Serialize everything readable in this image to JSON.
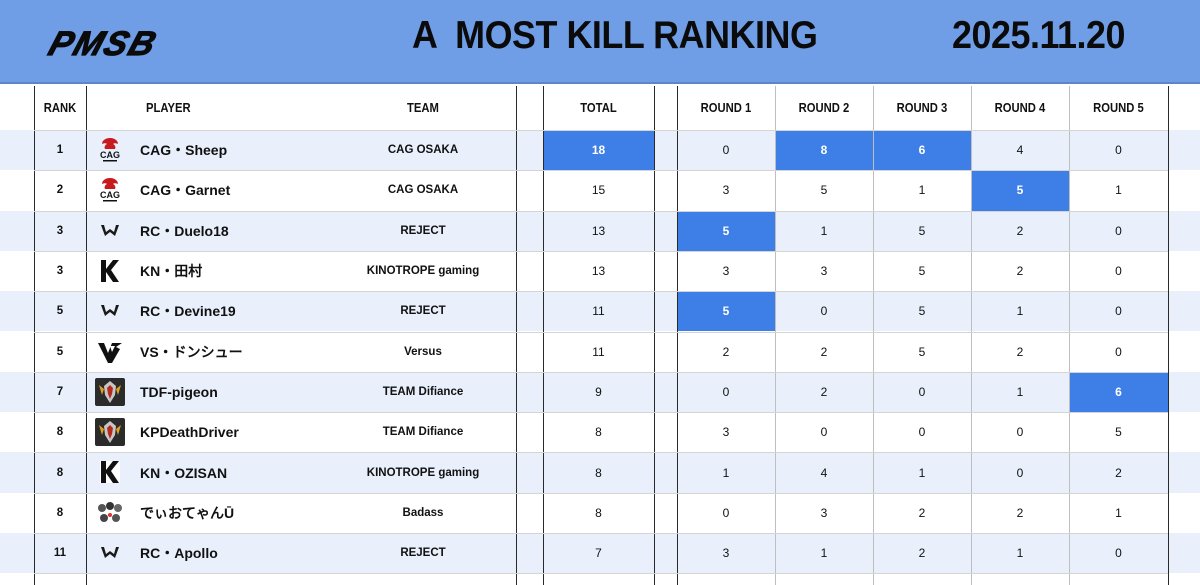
{
  "header": {
    "logo_text": "PMSB",
    "title": "A  MOST KILL RANKING",
    "date": "2025.11.20",
    "colors": {
      "banner": "#6f9de6",
      "highlight": "#3d7fe6",
      "row_alt": "#e9f0fb"
    }
  },
  "columns": {
    "rank": "RANK",
    "player": "PLAYER",
    "team": "TEAM",
    "total": "TOTAL",
    "r1": "ROUND 1",
    "r2": "ROUND 2",
    "r3": "ROUND 3",
    "r4": "ROUND 4",
    "r5": "ROUND 5"
  },
  "rows": [
    {
      "rank": "1",
      "player": "CAG・Sheep",
      "team": "CAG OSAKA",
      "logo": "cag-logo-icon",
      "total": "18",
      "r1": "0",
      "r2": "8",
      "r3": "6",
      "r4": "4",
      "r5": "0",
      "hl": [
        "total",
        "r2",
        "r3"
      ]
    },
    {
      "rank": "2",
      "player": "CAG・Garnet",
      "team": "CAG OSAKA",
      "logo": "cag-logo-icon",
      "total": "15",
      "r1": "3",
      "r2": "5",
      "r3": "1",
      "r4": "5",
      "r5": "1",
      "hl": [
        "r4"
      ]
    },
    {
      "rank": "3",
      "player": "RC・Duelo18",
      "team": "REJECT",
      "logo": "reject-logo-icon",
      "total": "13",
      "r1": "5",
      "r2": "1",
      "r3": "5",
      "r4": "2",
      "r5": "0",
      "hl": [
        "r1"
      ]
    },
    {
      "rank": "3",
      "player": "KN・田村",
      "team": "KINOTROPE gaming",
      "logo": "kinotrope-logo-icon",
      "total": "13",
      "r1": "3",
      "r2": "3",
      "r3": "5",
      "r4": "2",
      "r5": "0",
      "hl": []
    },
    {
      "rank": "5",
      "player": "RC・Devine19",
      "team": "REJECT",
      "logo": "reject-logo-icon",
      "total": "11",
      "r1": "5",
      "r2": "0",
      "r3": "5",
      "r4": "1",
      "r5": "0",
      "hl": [
        "r1"
      ]
    },
    {
      "rank": "5",
      "player": "VS・ドンシュー",
      "team": "Versus",
      "logo": "versus-logo-icon",
      "total": "11",
      "r1": "2",
      "r2": "2",
      "r3": "5",
      "r4": "2",
      "r5": "0",
      "hl": []
    },
    {
      "rank": "7",
      "player": "TDF-pigeon",
      "team": "TEAM Difiance",
      "logo": "difiance-logo-icon",
      "total": "9",
      "r1": "0",
      "r2": "2",
      "r3": "0",
      "r4": "1",
      "r5": "6",
      "hl": [
        "r5"
      ]
    },
    {
      "rank": "8",
      "player": "KPDeathDriver",
      "team": "TEAM Difiance",
      "logo": "difiance-logo-icon",
      "total": "8",
      "r1": "3",
      "r2": "0",
      "r3": "0",
      "r4": "0",
      "r5": "5",
      "hl": []
    },
    {
      "rank": "8",
      "player": "KN・OZISAN",
      "team": "KINOTROPE gaming",
      "logo": "kinotrope-logo-icon",
      "total": "8",
      "r1": "1",
      "r2": "4",
      "r3": "1",
      "r4": "0",
      "r5": "2",
      "hl": []
    },
    {
      "rank": "8",
      "player": "でぃおてゃんŪ",
      "team": "Badass",
      "logo": "badass-logo-icon",
      "total": "8",
      "r1": "0",
      "r2": "3",
      "r3": "2",
      "r4": "2",
      "r5": "1",
      "hl": []
    },
    {
      "rank": "11",
      "player": "RC・Apollo",
      "team": "REJECT",
      "logo": "reject-logo-icon",
      "total": "7",
      "r1": "3",
      "r2": "1",
      "r3": "2",
      "r4": "1",
      "r5": "0",
      "hl": []
    }
  ]
}
